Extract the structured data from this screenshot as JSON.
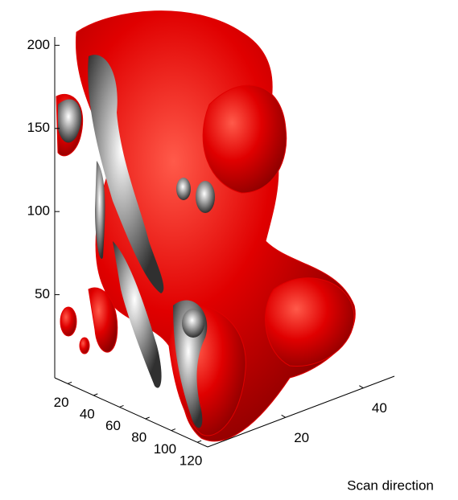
{
  "chart_data": {
    "type": "isosurface3d",
    "xlim": [
      10,
      128
    ],
    "xticks": [
      20,
      40,
      60,
      80,
      100,
      120
    ],
    "ylim": [
      0,
      48
    ],
    "yticks": [
      20,
      40
    ],
    "ylabel": "Scan direction",
    "zlim": [
      0,
      205
    ],
    "zticks": [
      50,
      100,
      150,
      200
    ],
    "color": "#e00000"
  }
}
